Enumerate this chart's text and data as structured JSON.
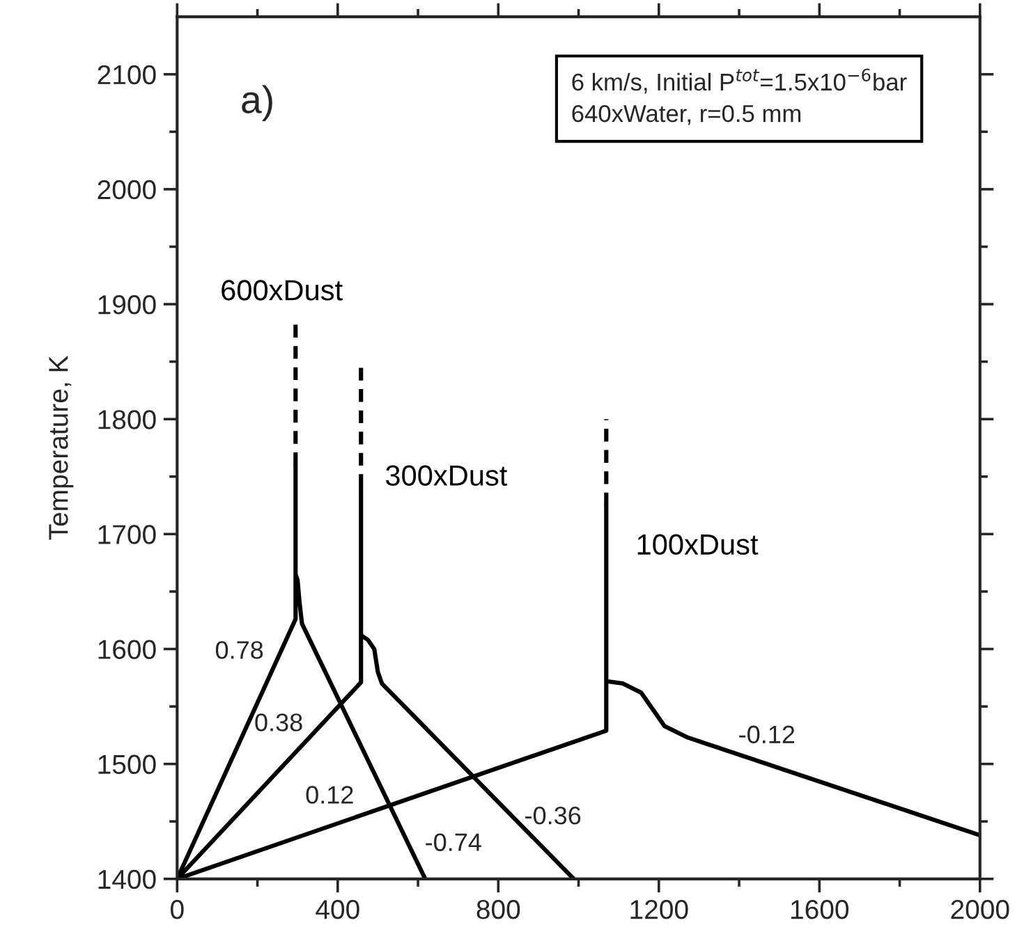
{
  "chart_data": {
    "type": "line",
    "ylabel": "Temperature, K",
    "xlim": [
      0,
      2000
    ],
    "ylim": [
      1400,
      2150
    ],
    "xticks": [
      0,
      {
        "value": 200,
        "label": null
      },
      400,
      {
        "value": 600,
        "label": null
      },
      800,
      {
        "value": 1000,
        "label": null
      },
      1200,
      {
        "value": 1400,
        "label": null
      },
      1600,
      {
        "value": 1800,
        "label": null
      },
      2000
    ],
    "yticks": [
      1400,
      {
        "value": 1450,
        "label": null
      },
      1500,
      {
        "value": 1550,
        "label": null
      },
      1600,
      {
        "value": 1650,
        "label": null
      },
      1700,
      {
        "value": 1750,
        "label": null
      },
      1800,
      {
        "value": 1850,
        "label": null
      },
      1900,
      {
        "value": 1950,
        "label": null
      },
      2000,
      {
        "value": 2050,
        "label": null
      },
      2100
    ],
    "grid": false,
    "series": [
      {
        "color": "#000000",
        "line_style": "solid",
        "x": [
          0,
          295,
          295,
          295,
          300,
          305,
          311,
          618
        ],
        "values": [
          1400,
          1626,
          1760,
          1665,
          1660,
          1640,
          1622,
          1400
        ]
      },
      {
        "name": "600xDust",
        "color": "#000000",
        "line_style": "dashed",
        "x": [
          295,
          295
        ],
        "values": [
          1760,
          1888
        ]
      },
      {
        "name": "300xDust",
        "color": "#000000",
        "line_style": "solid",
        "x": [
          0,
          458,
          458,
          458,
          475,
          491,
          500,
          510,
          988
        ],
        "values": [
          1400,
          1571,
          1741,
          1612,
          1608,
          1600,
          1580,
          1570,
          1400
        ]
      },
      {
        "color": "#000000",
        "line_style": "dashed",
        "x": [
          458,
          458
        ],
        "values": [
          1741,
          1850
        ]
      },
      {
        "name": "100xDust",
        "color": "#000000",
        "line_style": "solid",
        "x": [
          0,
          1069,
          1069,
          1069,
          1110,
          1156,
          1190,
          1214,
          1272,
          2000
        ],
        "values": [
          1400,
          1529,
          1725,
          1572,
          1570,
          1562,
          1545,
          1533,
          1523,
          1438
        ]
      },
      {
        "color": "#000000",
        "line_style": "dashed",
        "x": [
          1069,
          1069
        ],
        "values": [
          1725,
          1800
        ]
      }
    ],
    "annotations": [
      "a)",
      "6 km/s, Initial P$^{tot}$=1.5x10$^{−6}$bar\n640xWater, r=0.5 mm",
      "0.78",
      "0.38",
      "0.12",
      "-0.74",
      "-0.36",
      "-0.12"
    ]
  }
}
